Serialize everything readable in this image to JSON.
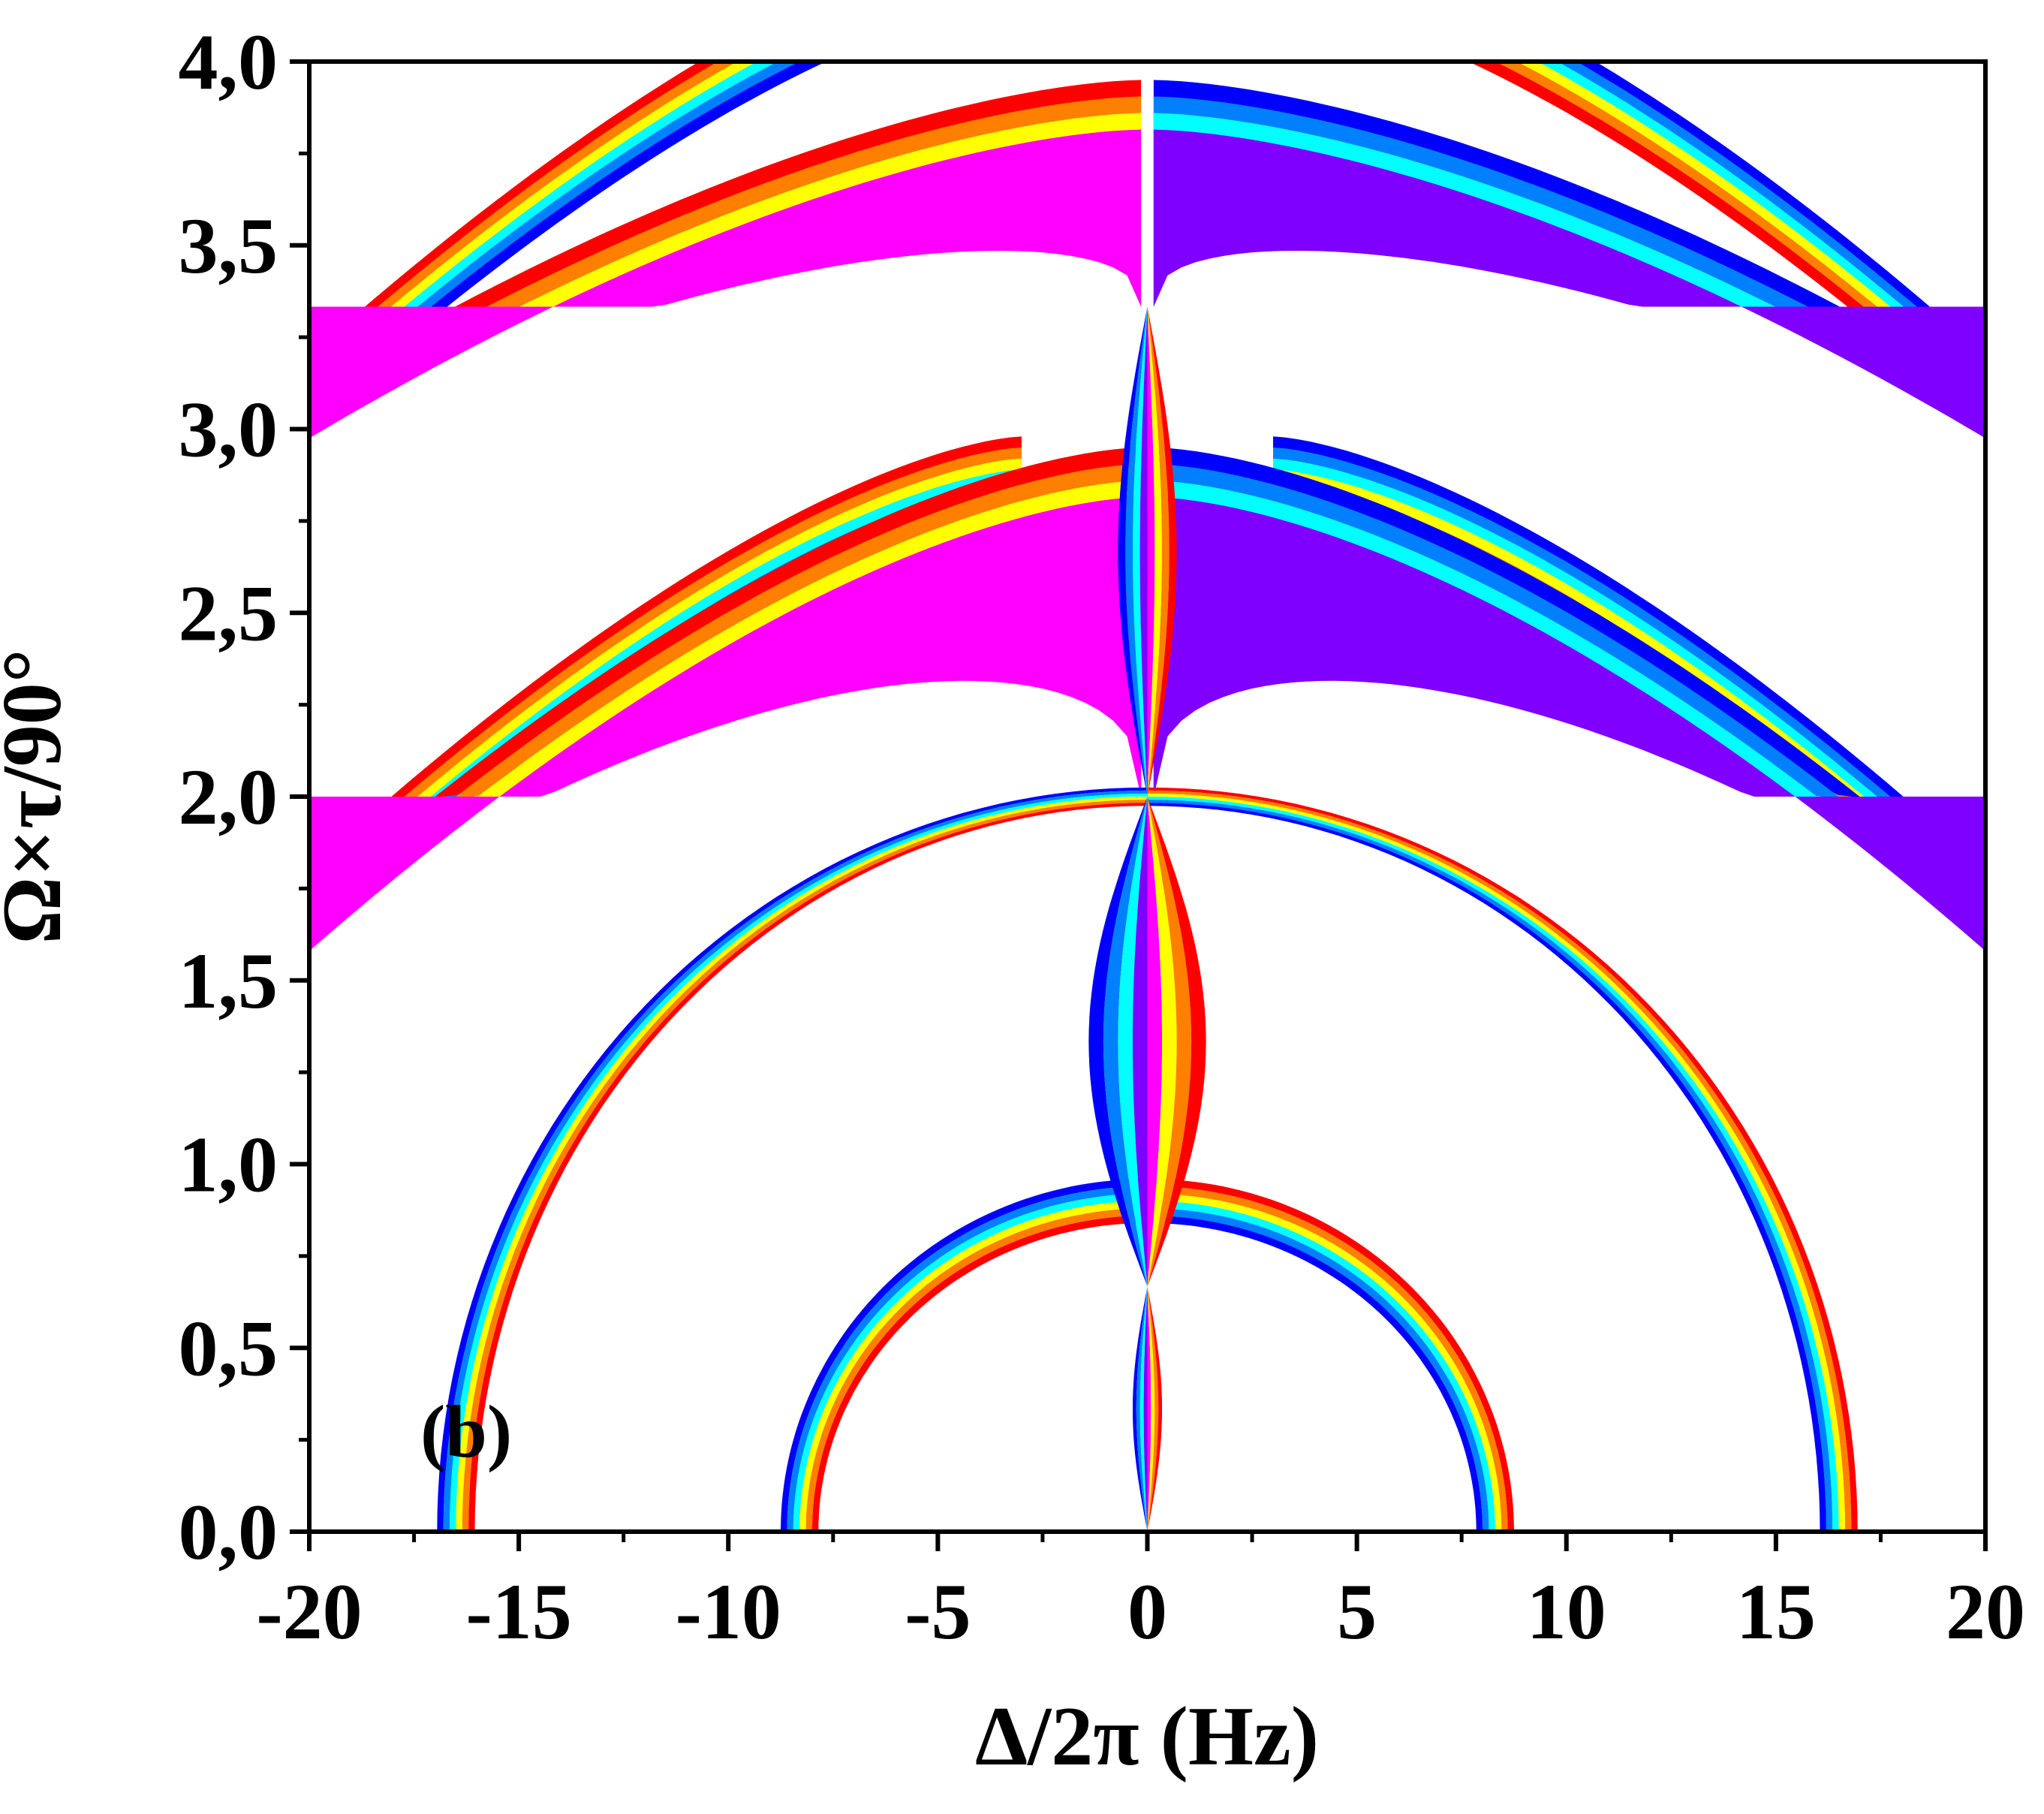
{
  "chart_data": {
    "type": "heatmap",
    "panel_label": "(b)",
    "xlabel": "Δ/2π (Hz)",
    "ylabel": "Ω×τ/90°",
    "xlim": [
      -20,
      20
    ],
    "ylim": [
      0.0,
      4.0
    ],
    "x_ticks": [
      "-20",
      "-15",
      "-10",
      "-5",
      "0",
      "5",
      "10",
      "15",
      "20"
    ],
    "x_tick_values": [
      -20,
      -15,
      -10,
      -5,
      0,
      5,
      10,
      15,
      20
    ],
    "y_ticks": [
      "0,0",
      "0,5",
      "1,0",
      "1,5",
      "2,0",
      "2,5",
      "3,0",
      "3,5",
      "4,0"
    ],
    "y_tick_values": [
      0.0,
      0.5,
      1.0,
      1.5,
      2.0,
      2.5,
      3.0,
      3.5,
      4.0
    ],
    "grid": false,
    "legend": "none",
    "colormap_negative": [
      "#ff0000",
      "#ff7f00",
      "#ffff00",
      "#ff00ff"
    ],
    "colormap_positive": [
      "#0000ff",
      "#0080ff",
      "#00ffff",
      "#8000ff"
    ],
    "description_values": {
      "singular_points": [
        {
          "x": 0,
          "y": 0.667
        },
        {
          "x": 0,
          "y": 2.0
        },
        {
          "x": 0,
          "y": 3.333
        }
      ],
      "closed_arcs": [
        {
          "x_intercepts": [
            -8.3,
            8.3
          ],
          "peak": {
            "x": 0,
            "y": 0.667
          }
        },
        {
          "x_intercepts": [
            -16.5,
            16.5
          ],
          "peak": {
            "x": 0,
            "y": 2.0
          }
        }
      ],
      "outer_arcs_y_at_edges": [
        1.75,
        3.15
      ]
    }
  }
}
